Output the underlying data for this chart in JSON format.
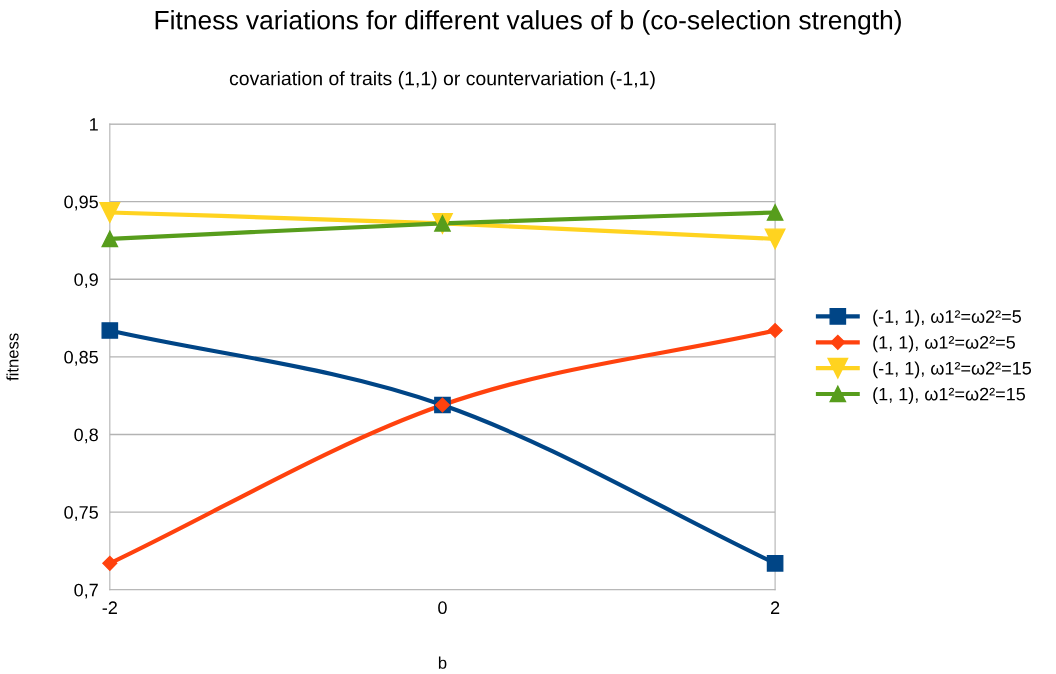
{
  "chart_data": {
    "type": "line",
    "title": "Fitness variations for different values of b (co-selection strength)",
    "subtitle": "covariation of traits (1,1) or countervariation (-1,1)",
    "xlabel": "b",
    "ylabel": "fitness",
    "x": [
      -2,
      0,
      2
    ],
    "series": [
      {
        "name": "(-1, 1), ω1²=ω2²=5",
        "color": "#004586",
        "marker": "square",
        "values": [
          0.867,
          0.819,
          0.717
        ]
      },
      {
        "name": "(1, 1), ω1²=ω2²=5",
        "color": "#ff420e",
        "marker": "diamond",
        "values": [
          0.717,
          0.819,
          0.867
        ]
      },
      {
        "name": "(-1, 1), ω1²=ω2²=15",
        "color": "#ffd320",
        "marker": "triangle-down",
        "values": [
          0.943,
          0.936,
          0.926
        ]
      },
      {
        "name": "(1, 1), ω1²=ω2²=15",
        "color": "#579d1c",
        "marker": "triangle",
        "values": [
          0.926,
          0.936,
          0.943
        ]
      }
    ],
    "xlim": [
      -2,
      2
    ],
    "xticks": [
      -2,
      0,
      2
    ],
    "ylim": [
      0.7,
      1
    ],
    "yticks": [
      {
        "value": 0.7,
        "label": "0,7"
      },
      {
        "value": 0.75,
        "label": "0,75"
      },
      {
        "value": 0.8,
        "label": "0,8"
      },
      {
        "value": 0.85,
        "label": "0,85"
      },
      {
        "value": 0.9,
        "label": "0,9"
      },
      {
        "value": 0.95,
        "label": "0,95"
      },
      {
        "value": 1,
        "label": "1"
      }
    ],
    "grid": "y",
    "legend": "right",
    "line_style": "solid"
  }
}
